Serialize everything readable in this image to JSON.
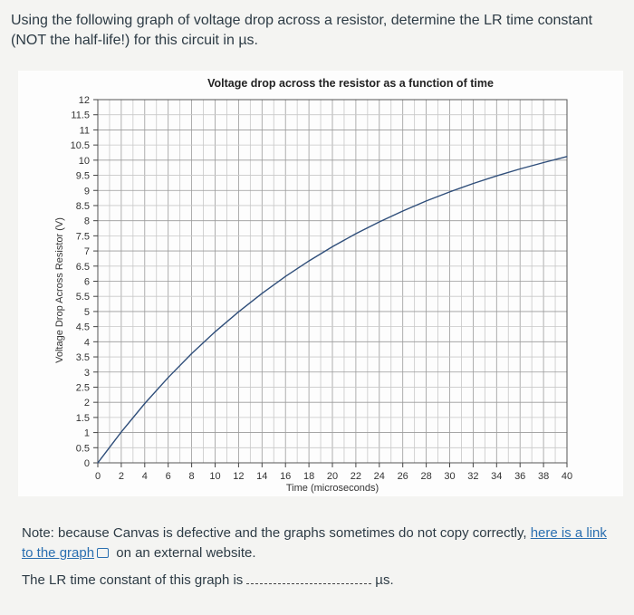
{
  "question": {
    "text": "Using the following graph of voltage drop across a resistor, determine the LR time constant (NOT the half-life!) for this circuit in µs."
  },
  "chart_data": {
    "type": "line",
    "title": "Voltage drop across the resistor as a function of time",
    "xlabel": "Time (microseconds)",
    "ylabel": "Voltage Drop Across Resistor (V)",
    "xlim": [
      0,
      40
    ],
    "ylim": [
      0,
      12
    ],
    "x_ticks": [
      "0",
      "2",
      "4",
      "6",
      "8",
      "10",
      "12",
      "14",
      "16",
      "18",
      "20",
      "22",
      "24",
      "26",
      "28",
      "30",
      "32",
      "34",
      "36",
      "38",
      "40"
    ],
    "y_ticks": [
      "0",
      "0.5",
      "1",
      "1.5",
      "2",
      "2.5",
      "3",
      "3.5",
      "4",
      "4.5",
      "5",
      "5.5",
      "6",
      "6.5",
      "7",
      "7.5",
      "8",
      "8.5",
      "9",
      "9.5",
      "10",
      "10.5",
      "11",
      "11.5",
      "12"
    ],
    "grid": true,
    "series": [
      {
        "color": "#2f4e7a",
        "x": [
          0,
          2,
          4,
          6,
          8,
          10,
          12,
          14,
          16,
          18,
          20,
          22,
          24,
          26,
          28,
          30,
          32,
          34,
          36,
          38,
          40
        ],
        "y": [
          0,
          1.02,
          1.96,
          2.82,
          3.61,
          4.33,
          4.99,
          5.6,
          6.16,
          6.67,
          7.14,
          7.57,
          7.96,
          8.32,
          8.65,
          8.95,
          9.23,
          9.48,
          9.71,
          9.92,
          10.12
        ]
      }
    ]
  },
  "note": {
    "prefix": "Note: because Canvas is defective and the graphs sometimes do not copy correctly, ",
    "link_text": "here is a link to the graph",
    "suffix": " on an external website."
  },
  "answer": {
    "prefix": "The LR time constant of this graph is",
    "unit": "µs."
  }
}
